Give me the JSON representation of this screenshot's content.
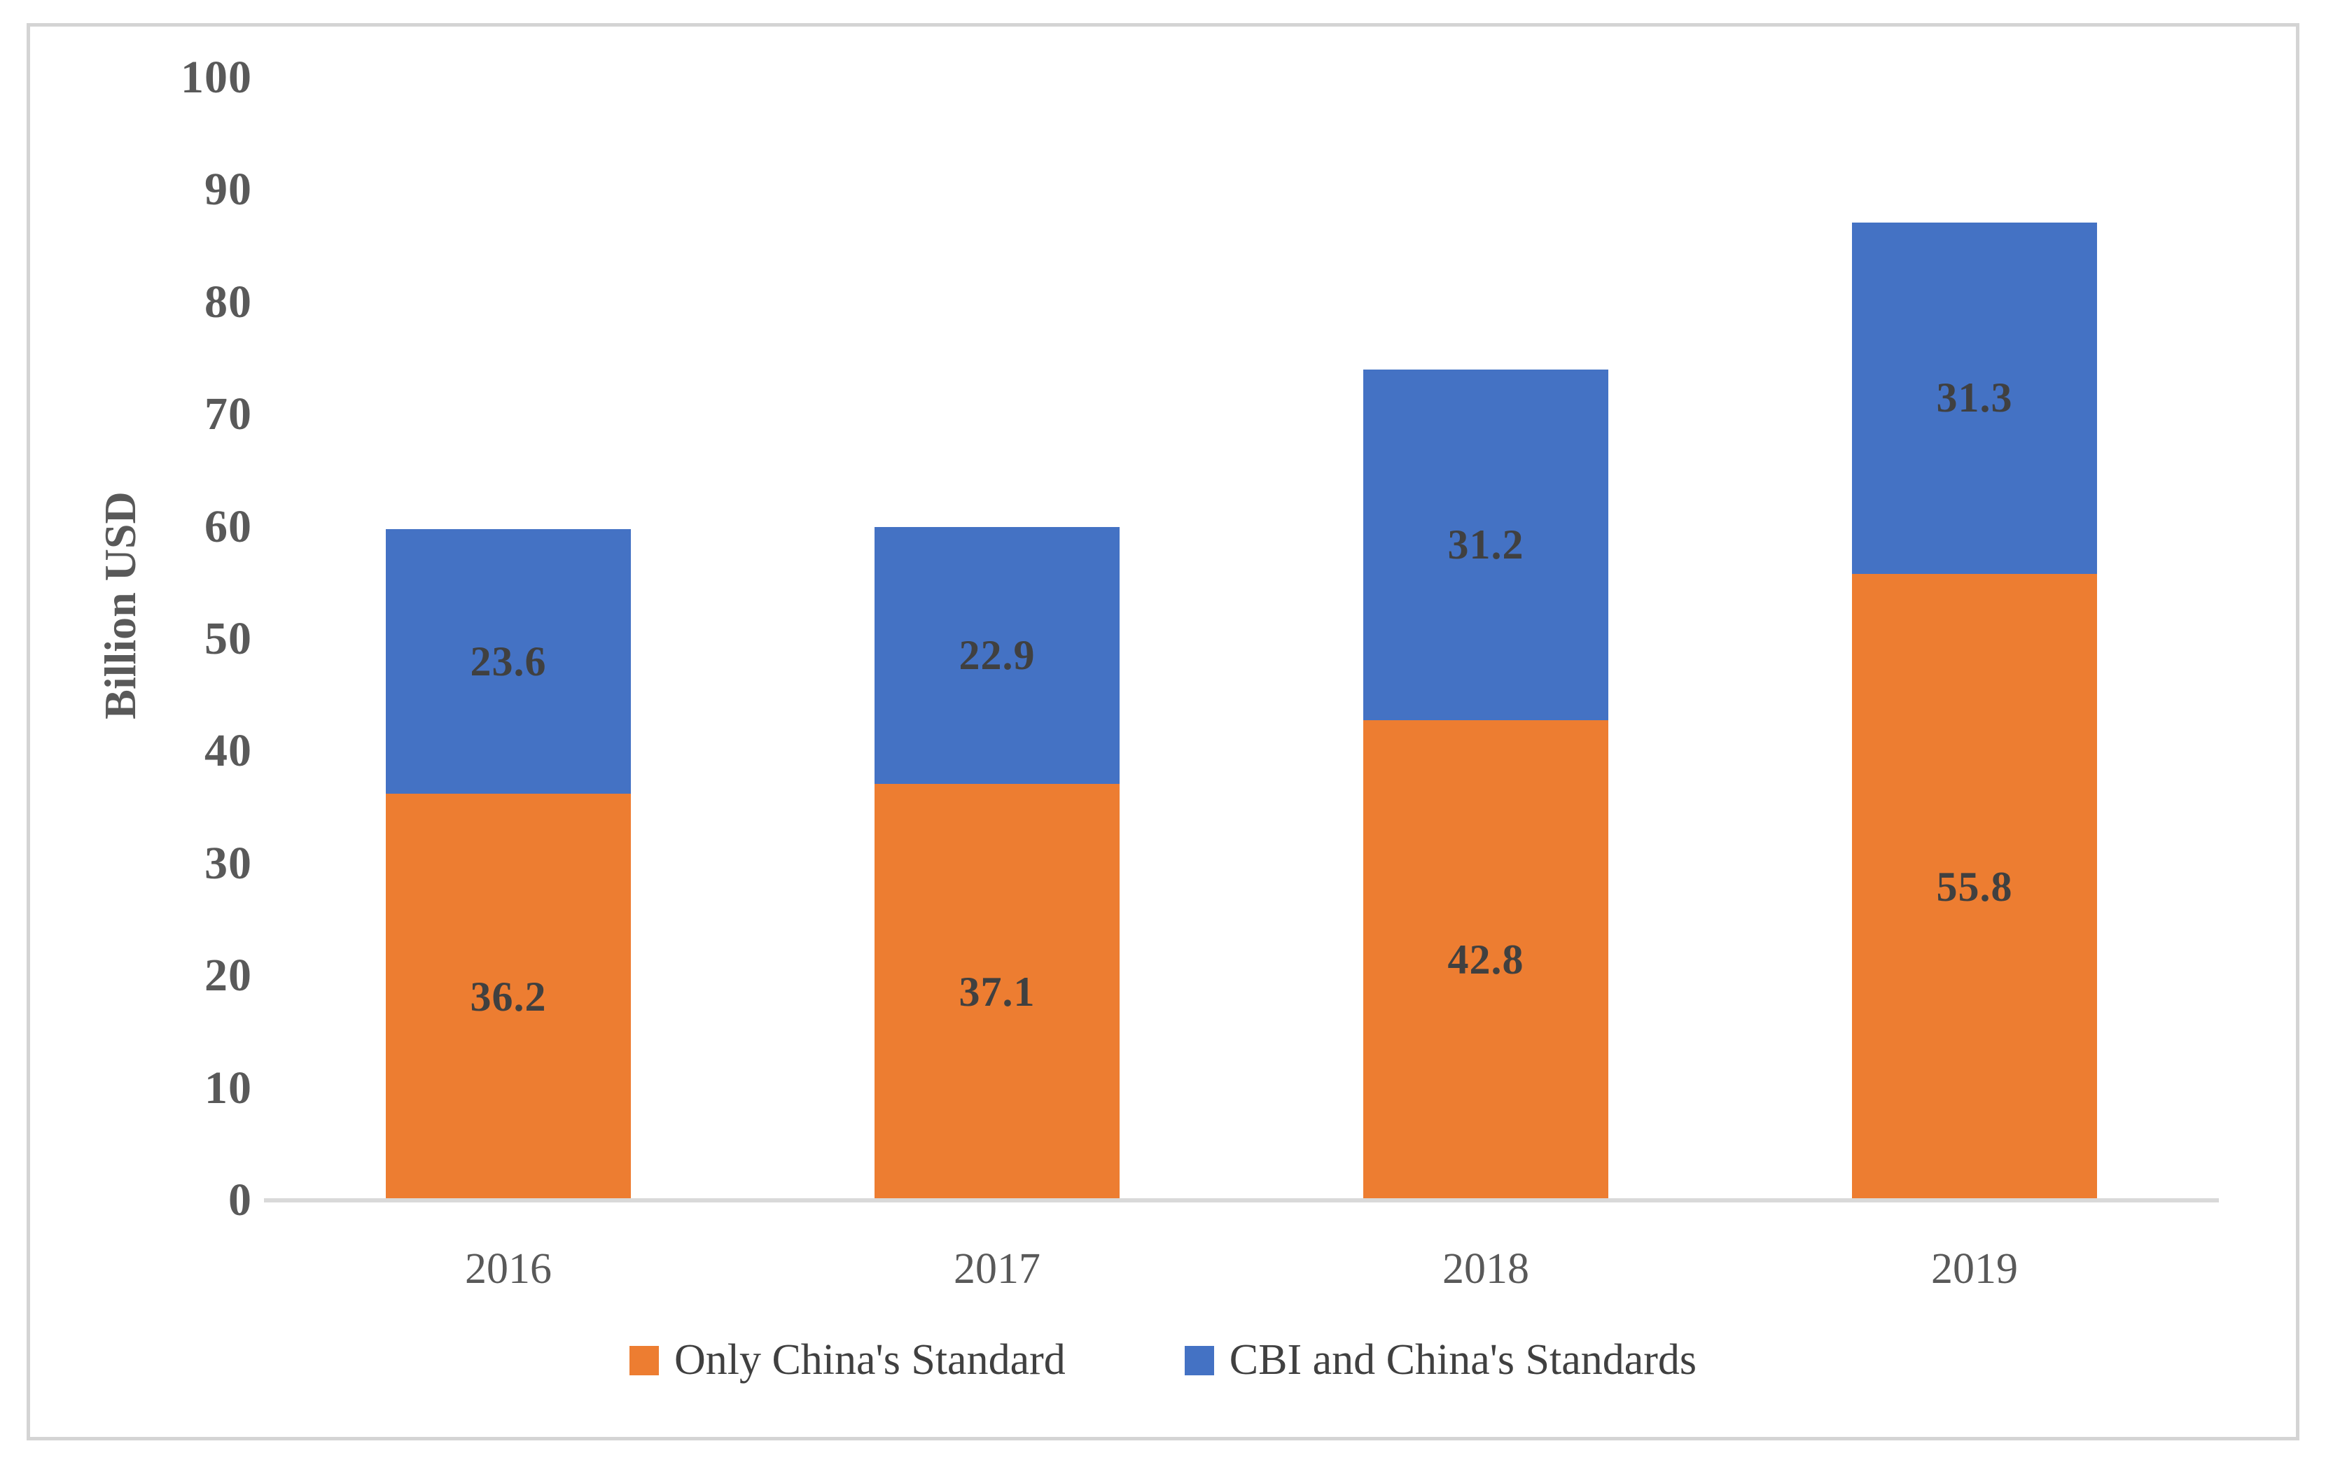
{
  "chart_data": {
    "type": "bar",
    "stacked": true,
    "title": "",
    "xlabel": "",
    "ylabel": "Billion USD",
    "categories": [
      "2016",
      "2017",
      "2018",
      "2019"
    ],
    "series": [
      {
        "name": "Only China's Standard",
        "color": "#ED7D31",
        "values": [
          36.2,
          37.1,
          42.8,
          55.8
        ]
      },
      {
        "name": "CBI and China's Standards",
        "color": "#4472C4",
        "values": [
          23.6,
          22.9,
          31.2,
          31.3
        ]
      }
    ],
    "ylim": [
      0,
      100
    ],
    "yticks": [
      0,
      10,
      20,
      30,
      40,
      50,
      60,
      70,
      80,
      90,
      100
    ],
    "grid": false,
    "legend_position": "bottom",
    "data_labels": "centered-in-segment"
  },
  "style_colors": {
    "tick_text": "#595959",
    "label_text": "#404040",
    "axis_line": "#d9d9d9",
    "frame_border": "#d4d4d4",
    "background": "#ffffff"
  }
}
